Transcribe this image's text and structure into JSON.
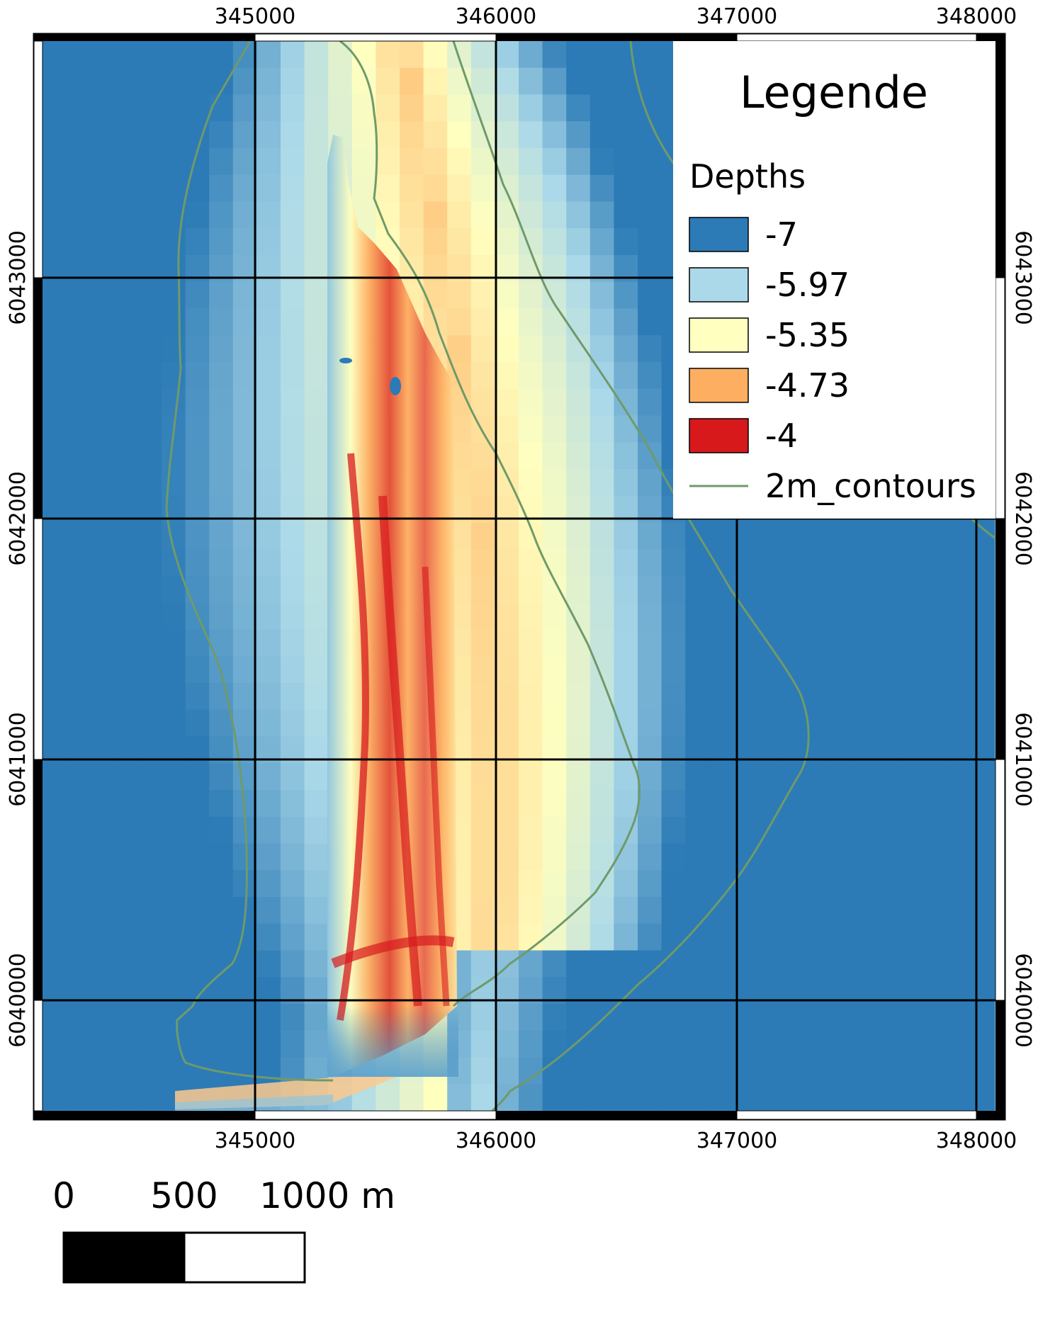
{
  "map": {
    "x_labels": [
      "345000",
      "346000",
      "347000",
      "348000"
    ],
    "y_labels": [
      "6043000",
      "6042000",
      "6041000",
      "6040000"
    ]
  },
  "legend": {
    "title": "Legende",
    "subtitle": "Depths",
    "items": [
      {
        "label": "-7",
        "color": "#2c7bb6"
      },
      {
        "label": "-5.97",
        "color": "#abd9e9"
      },
      {
        "label": "-5.35",
        "color": "#ffffbf"
      },
      {
        "label": "-4.73",
        "color": "#fdae61"
      },
      {
        "label": "-4",
        "color": "#d7191c"
      }
    ],
    "contour_label": "2m_contours",
    "contour_color": "#6f9a6a"
  },
  "scale_bar": {
    "labels": [
      "0",
      "500",
      "1000 m"
    ]
  }
}
